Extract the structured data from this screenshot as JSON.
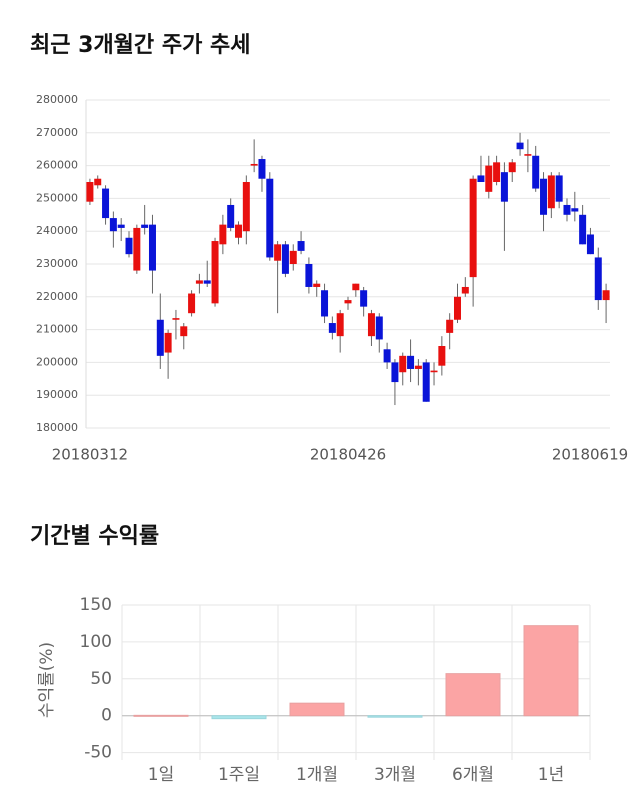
{
  "chart_data": [
    {
      "type": "candlestick",
      "title": "최근 3개월간 주가 추세",
      "categories": [
        "20180312",
        null,
        null,
        null,
        null,
        null,
        null,
        null,
        null,
        null,
        null,
        null,
        null,
        null,
        null,
        null,
        null,
        null,
        null,
        null,
        null,
        null,
        null,
        null,
        null,
        null,
        null,
        null,
        null,
        null,
        null,
        null,
        null,
        "20180426",
        null,
        null,
        null,
        null,
        null,
        null,
        null,
        null,
        null,
        null,
        null,
        null,
        null,
        null,
        null,
        null,
        null,
        null,
        null,
        null,
        null,
        null,
        null,
        null,
        null,
        null,
        null,
        null,
        null,
        null,
        null,
        null,
        "20180619"
      ],
      "open": [
        249000,
        254000,
        253000,
        244000,
        242000,
        238000,
        228000,
        242000,
        242000,
        213000,
        203000,
        213000,
        208000,
        215000,
        224000,
        225000,
        218000,
        236000,
        248000,
        238000,
        240000,
        260000,
        262000,
        256000,
        231000,
        236000,
        230000,
        237000,
        230000,
        223000,
        222000,
        212000,
        208000,
        218000,
        222000,
        222000,
        208000,
        214000,
        204000,
        200000,
        197000,
        202000,
        198000,
        200000,
        197000,
        199000,
        209000,
        213000,
        221000,
        226000,
        257000,
        252000,
        255000,
        258000,
        258000,
        267000,
        263000,
        263000,
        256000,
        247000,
        257000,
        248000,
        247000,
        245000,
        239000,
        232000,
        219000
      ],
      "high": [
        256000,
        257000,
        254000,
        246000,
        244000,
        240000,
        242000,
        248000,
        245000,
        221000,
        210000,
        216000,
        212000,
        222000,
        227000,
        231000,
        238000,
        245000,
        250000,
        243000,
        257000,
        268000,
        263000,
        258000,
        237000,
        237000,
        236000,
        240000,
        232000,
        225000,
        224000,
        214000,
        216000,
        220000,
        224000,
        223000,
        216000,
        215000,
        206000,
        201000,
        203000,
        207000,
        201000,
        201000,
        200000,
        208000,
        215000,
        224000,
        226000,
        257000,
        263000,
        263000,
        263000,
        261000,
        262000,
        270000,
        268000,
        266000,
        258000,
        258000,
        258000,
        250000,
        252000,
        248000,
        241000,
        235000,
        224000
      ],
      "low": [
        248000,
        253000,
        242000,
        235000,
        237000,
        232000,
        227000,
        239000,
        221000,
        198000,
        195000,
        207000,
        204000,
        214000,
        221000,
        223000,
        217000,
        233000,
        240000,
        236000,
        236000,
        258000,
        252000,
        231000,
        215000,
        226000,
        228000,
        233000,
        221000,
        220000,
        212000,
        207000,
        203000,
        216000,
        220000,
        214000,
        205000,
        203000,
        198000,
        187000,
        193000,
        194000,
        193000,
        188000,
        193000,
        196000,
        204000,
        212000,
        220000,
        217000,
        255000,
        250000,
        254000,
        234000,
        255000,
        263000,
        258000,
        252000,
        240000,
        244000,
        247000,
        243000,
        243000,
        236000,
        233000,
        216000,
        212000
      ],
      "close": [
        255000,
        256000,
        244000,
        240000,
        241000,
        233000,
        241000,
        241000,
        228000,
        202000,
        209000,
        213500,
        211000,
        221000,
        225000,
        224000,
        237000,
        242000,
        241000,
        242000,
        255000,
        260500,
        256000,
        232000,
        236000,
        227000,
        234000,
        234000,
        223000,
        224000,
        214000,
        209000,
        215000,
        219000,
        224000,
        217000,
        215000,
        207000,
        200000,
        194000,
        202000,
        198000,
        199000,
        188000,
        197500,
        205000,
        213000,
        220000,
        223000,
        256000,
        255000,
        260000,
        261000,
        249000,
        261000,
        265000,
        263500,
        253000,
        245000,
        257000,
        249000,
        245000,
        246000,
        236000,
        233000,
        219000,
        222000
      ],
      "up_color": "#e8100f",
      "down_color": "#0a14d8",
      "ylim": [
        180000,
        280000
      ],
      "yticks": [
        180000,
        190000,
        200000,
        210000,
        220000,
        230000,
        240000,
        250000,
        260000,
        270000,
        280000
      ],
      "grid": true
    },
    {
      "type": "bar",
      "title": "기간별 수익률",
      "ylabel": "수익률(%)",
      "categories": [
        "1일",
        "1주일",
        "1개월",
        "3개월",
        "6개월",
        "1년"
      ],
      "values": [
        0.5,
        -4,
        17,
        -2,
        57,
        122
      ],
      "positive_color": "#fba4a4",
      "negative_color": "#a9e5ea",
      "ylim": [
        -60,
        150
      ],
      "yticks": [
        -50,
        0,
        50,
        100,
        150
      ],
      "grid": true
    }
  ]
}
